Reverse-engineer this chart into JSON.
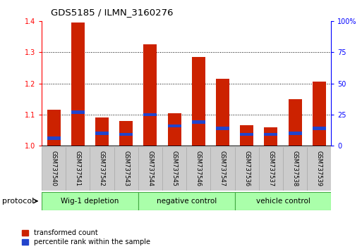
{
  "title": "GDS5185 / ILMN_3160276",
  "samples": [
    "GSM737540",
    "GSM737541",
    "GSM737542",
    "GSM737543",
    "GSM737544",
    "GSM737545",
    "GSM737546",
    "GSM737547",
    "GSM737536",
    "GSM737537",
    "GSM737538",
    "GSM737539"
  ],
  "transformed_count": [
    1.115,
    1.395,
    1.09,
    1.08,
    1.325,
    1.105,
    1.285,
    1.215,
    1.065,
    1.06,
    1.15,
    1.205
  ],
  "percentile_rank_pct": [
    6,
    27,
    10,
    9,
    25,
    16,
    19,
    14,
    9,
    9,
    10,
    14
  ],
  "groups": [
    {
      "label": "Wig-1 depletion",
      "start": 0,
      "end": 3
    },
    {
      "label": "negative control",
      "start": 4,
      "end": 7
    },
    {
      "label": "vehicle control",
      "start": 8,
      "end": 11
    }
  ],
  "ylim_left": [
    1.0,
    1.4
  ],
  "ylim_right": [
    0,
    100
  ],
  "yticks_left": [
    1.0,
    1.1,
    1.2,
    1.3,
    1.4
  ],
  "yticks_right": [
    0,
    25,
    50,
    75,
    100
  ],
  "bar_width": 0.55,
  "red_color": "#cc2200",
  "blue_color": "#2244cc",
  "group_bg_color": "#aaffaa",
  "sample_bg_color": "#cccccc",
  "group_border_color": "#44aa44",
  "legend_red": "transformed count",
  "legend_blue": "percentile rank within the sample",
  "protocol_label": "protocol"
}
